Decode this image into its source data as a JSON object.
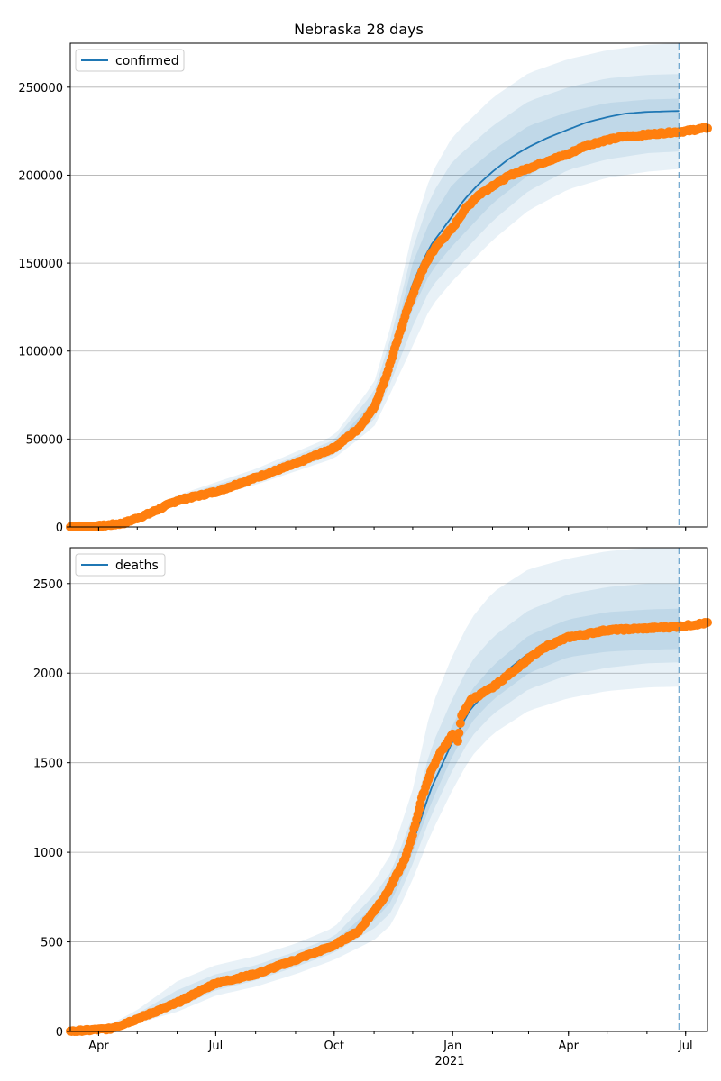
{
  "figure": {
    "title": "Nebraska 28 days"
  },
  "x_axis": {
    "tick_labels": [
      "Apr",
      "Jul",
      "Oct",
      "Jan",
      "Apr",
      "Jul"
    ],
    "year_label": "2021"
  },
  "colors": {
    "model": "#1f77b4",
    "observed": "#ff7f0e",
    "grid": "#b0b0b0",
    "band": "#1f77b4"
  },
  "chart_data": [
    {
      "type": "line",
      "title": "Nebraska 28 days",
      "legend": {
        "entries": [
          "confirmed"
        ],
        "placement": "top-left"
      },
      "xlabel": "",
      "ylabel": "",
      "x_range": [
        "2020-03-10",
        "2021-07-18"
      ],
      "ylim": [
        0,
        275000
      ],
      "y_ticks": [
        0,
        50000,
        100000,
        150000,
        200000,
        250000
      ],
      "forecast_start": "2021-06-26",
      "grid": "horizontal",
      "series": [
        {
          "name": "confirmed",
          "kind": "model-median",
          "x": [
            "2020-03-10",
            "2020-04-01",
            "2020-04-20",
            "2020-05-10",
            "2020-06-01",
            "2020-07-01",
            "2020-08-01",
            "2020-09-01",
            "2020-10-01",
            "2020-10-20",
            "2020-11-01",
            "2020-11-10",
            "2020-11-20",
            "2020-11-25",
            "2020-12-01",
            "2020-12-08",
            "2020-12-15",
            "2020-12-22",
            "2021-01-01",
            "2021-01-10",
            "2021-01-20",
            "2021-02-01",
            "2021-02-15",
            "2021-03-01",
            "2021-03-15",
            "2021-04-01",
            "2021-04-15",
            "2021-05-01",
            "2021-05-15",
            "2021-06-01",
            "2021-06-26"
          ],
          "values": [
            0,
            400,
            2000,
            7500,
            15000,
            20000,
            28000,
            36000,
            45000,
            56000,
            68000,
            85000,
            112000,
            125000,
            138000,
            150000,
            160000,
            167000,
            177000,
            186000,
            194000,
            202000,
            210000,
            216000,
            221000,
            226000,
            230000,
            233000,
            235000,
            236000,
            236500
          ]
        },
        {
          "name": "observed",
          "kind": "observed-points",
          "x": [
            "2020-03-10",
            "2020-04-01",
            "2020-04-20",
            "2020-05-10",
            "2020-06-01",
            "2020-07-01",
            "2020-08-01",
            "2020-09-01",
            "2020-10-01",
            "2020-10-20",
            "2020-11-01",
            "2020-11-10",
            "2020-11-20",
            "2020-11-25",
            "2020-12-01",
            "2020-12-08",
            "2020-12-15",
            "2020-12-22",
            "2021-01-01",
            "2021-01-10",
            "2021-01-20",
            "2021-02-01",
            "2021-02-15",
            "2021-03-01",
            "2021-03-15",
            "2021-04-01",
            "2021-04-15",
            "2021-05-01",
            "2021-05-15",
            "2021-06-01",
            "2021-06-15",
            "2021-07-01",
            "2021-07-18"
          ],
          "values": [
            0,
            400,
            2000,
            7500,
            15000,
            20000,
            28000,
            36000,
            45000,
            56000,
            68000,
            85000,
            108000,
            120000,
            132000,
            145000,
            155000,
            162000,
            170000,
            180000,
            188000,
            194000,
            200000,
            204000,
            208000,
            212000,
            217000,
            220000,
            222000,
            223000,
            224000,
            225000,
            227000
          ]
        }
      ],
      "bands": [
        {
          "x": [
            "2020-03-10",
            "2020-04-20",
            "2020-06-01",
            "2020-08-01",
            "2020-10-01",
            "2020-11-01",
            "2020-11-15",
            "2020-12-01",
            "2020-12-15",
            "2021-01-01",
            "2021-02-01",
            "2021-03-01",
            "2021-04-01",
            "2021-05-01",
            "2021-06-01",
            "2021-06-26"
          ],
          "lower": [
            0,
            1600,
            12500,
            24000,
            39000,
            57000,
            78000,
            103000,
            125000,
            140000,
            163000,
            180000,
            192000,
            198500,
            202000,
            203500
          ],
          "upper": [
            0,
            2600,
            18000,
            33000,
            52000,
            82000,
            117000,
            168000,
            200000,
            222000,
            244000,
            258000,
            266000,
            271000,
            274000,
            275000
          ]
        },
        {
          "x": [
            "2020-03-10",
            "2020-04-20",
            "2020-06-01",
            "2020-08-01",
            "2020-10-01",
            "2020-11-01",
            "2020-11-15",
            "2020-12-01",
            "2020-12-15",
            "2021-01-01",
            "2021-02-01",
            "2021-03-01",
            "2021-04-01",
            "2021-05-01",
            "2021-06-01",
            "2021-06-26"
          ],
          "lower": [
            0,
            1750,
            13300,
            25500,
            41000,
            61000,
            84000,
            114000,
            136000,
            150000,
            174000,
            191000,
            203000,
            209000,
            212500,
            213500
          ],
          "upper": [
            0,
            2400,
            17000,
            31000,
            49500,
            77000,
            110000,
            158000,
            188000,
            208000,
            228000,
            242000,
            250000,
            255000,
            257000,
            257500
          ]
        },
        {
          "x": [
            "2020-03-10",
            "2020-04-20",
            "2020-06-01",
            "2020-08-01",
            "2020-10-01",
            "2020-11-01",
            "2020-11-15",
            "2020-12-01",
            "2020-12-15",
            "2021-01-01",
            "2021-02-01",
            "2021-03-01",
            "2021-04-01",
            "2021-05-01",
            "2021-06-01",
            "2021-06-26"
          ],
          "lower": [
            0,
            1850,
            14000,
            26700,
            43000,
            64500,
            90000,
            124000,
            145000,
            160000,
            184000,
            200000,
            212000,
            218000,
            221000,
            222000
          ],
          "upper": [
            0,
            2200,
            16000,
            29500,
            47000,
            72000,
            102000,
            150000,
            175000,
            195000,
            214000,
            228000,
            236000,
            241000,
            243000,
            243500
          ]
        }
      ]
    },
    {
      "type": "line",
      "title": "",
      "legend": {
        "entries": [
          "deaths"
        ],
        "placement": "top-left"
      },
      "xlabel": "",
      "ylabel": "",
      "x_range": [
        "2020-03-10",
        "2021-07-18"
      ],
      "ylim": [
        0,
        2700
      ],
      "y_ticks": [
        0,
        500,
        1000,
        1500,
        2000,
        2500
      ],
      "forecast_start": "2021-06-26",
      "grid": "horizontal",
      "series": [
        {
          "name": "deaths",
          "kind": "model-median",
          "x": [
            "2020-03-10",
            "2020-04-10",
            "2020-05-01",
            "2020-06-01",
            "2020-07-01",
            "2020-08-01",
            "2020-09-01",
            "2020-10-01",
            "2020-10-20",
            "2020-11-10",
            "2020-12-01",
            "2020-12-15",
            "2021-01-01",
            "2021-01-15",
            "2021-02-01",
            "2021-02-15",
            "2021-03-01",
            "2021-04-01",
            "2021-05-01",
            "2021-06-01",
            "2021-06-26"
          ],
          "values": [
            0,
            15,
            70,
            160,
            270,
            320,
            400,
            480,
            560,
            760,
            1050,
            1350,
            1620,
            1800,
            1930,
            2030,
            2110,
            2190,
            2230,
            2250,
            2255
          ]
        },
        {
          "name": "observed",
          "kind": "observed-points",
          "x": [
            "2020-03-10",
            "2020-04-10",
            "2020-05-01",
            "2020-06-01",
            "2020-07-01",
            "2020-08-01",
            "2020-09-01",
            "2020-10-01",
            "2020-10-20",
            "2020-11-10",
            "2020-11-25",
            "2020-12-01",
            "2020-12-08",
            "2020-12-15",
            "2020-12-22",
            "2021-01-01",
            "2021-01-05",
            "2021-01-08",
            "2021-01-15",
            "2021-02-01",
            "2021-02-15",
            "2021-03-01",
            "2021-03-15",
            "2021-04-01",
            "2021-05-01",
            "2021-06-01",
            "2021-06-26",
            "2021-07-18"
          ],
          "values": [
            0,
            15,
            70,
            160,
            270,
            320,
            400,
            480,
            560,
            760,
            960,
            1100,
            1300,
            1450,
            1550,
            1660,
            1625,
            1760,
            1850,
            1920,
            2000,
            2080,
            2150,
            2200,
            2240,
            2250,
            2260,
            2280
          ]
        }
      ],
      "bands": [
        {
          "x": [
            "2020-03-10",
            "2020-04-10",
            "2020-05-01",
            "2020-06-01",
            "2020-07-01",
            "2020-08-01",
            "2020-09-01",
            "2020-10-01",
            "2020-11-01",
            "2020-11-15",
            "2020-12-01",
            "2020-12-15",
            "2021-01-01",
            "2021-01-15",
            "2021-02-01",
            "2021-03-01",
            "2021-04-01",
            "2021-05-01",
            "2021-06-01",
            "2021-06-26"
          ],
          "lower": [
            0,
            0,
            45,
            110,
            200,
            250,
            320,
            400,
            510,
            600,
            850,
            1100,
            1350,
            1530,
            1660,
            1790,
            1860,
            1900,
            1920,
            1925
          ],
          "upper": [
            30,
            40,
            120,
            280,
            370,
            420,
            490,
            580,
            840,
            1000,
            1350,
            1800,
            2100,
            2300,
            2450,
            2580,
            2640,
            2680,
            2700,
            2700
          ]
        },
        {
          "x": [
            "2020-03-10",
            "2020-04-10",
            "2020-05-01",
            "2020-06-01",
            "2020-07-01",
            "2020-08-01",
            "2020-09-01",
            "2020-10-01",
            "2020-11-01",
            "2020-11-15",
            "2020-12-01",
            "2020-12-15",
            "2021-01-01",
            "2021-01-15",
            "2021-02-01",
            "2021-03-01",
            "2021-04-01",
            "2021-05-01",
            "2021-06-01",
            "2021-06-26"
          ],
          "lower": [
            0,
            5,
            55,
            130,
            230,
            285,
            360,
            440,
            575,
            670,
            935,
            1200,
            1460,
            1640,
            1770,
            1910,
            1990,
            2030,
            2055,
            2060
          ],
          "upper": [
            20,
            30,
            100,
            230,
            320,
            370,
            445,
            530,
            760,
            900,
            1200,
            1580,
            1860,
            2060,
            2200,
            2350,
            2440,
            2480,
            2500,
            2500
          ]
        },
        {
          "x": [
            "2020-03-10",
            "2020-04-10",
            "2020-05-01",
            "2020-06-01",
            "2020-07-01",
            "2020-08-01",
            "2020-09-01",
            "2020-10-01",
            "2020-11-01",
            "2020-11-15",
            "2020-12-01",
            "2020-12-15",
            "2021-01-01",
            "2021-01-15",
            "2021-02-01",
            "2021-03-01",
            "2021-04-01",
            "2021-05-01",
            "2021-06-01",
            "2021-06-26"
          ],
          "lower": [
            0,
            8,
            60,
            140,
            245,
            300,
            375,
            455,
            620,
            730,
            1000,
            1270,
            1540,
            1720,
            1850,
            2000,
            2090,
            2120,
            2130,
            2135
          ],
          "upper": [
            14,
            22,
            85,
            190,
            290,
            340,
            420,
            500,
            700,
            820,
            1120,
            1450,
            1710,
            1900,
            2040,
            2210,
            2300,
            2340,
            2355,
            2360
          ]
        }
      ]
    }
  ]
}
